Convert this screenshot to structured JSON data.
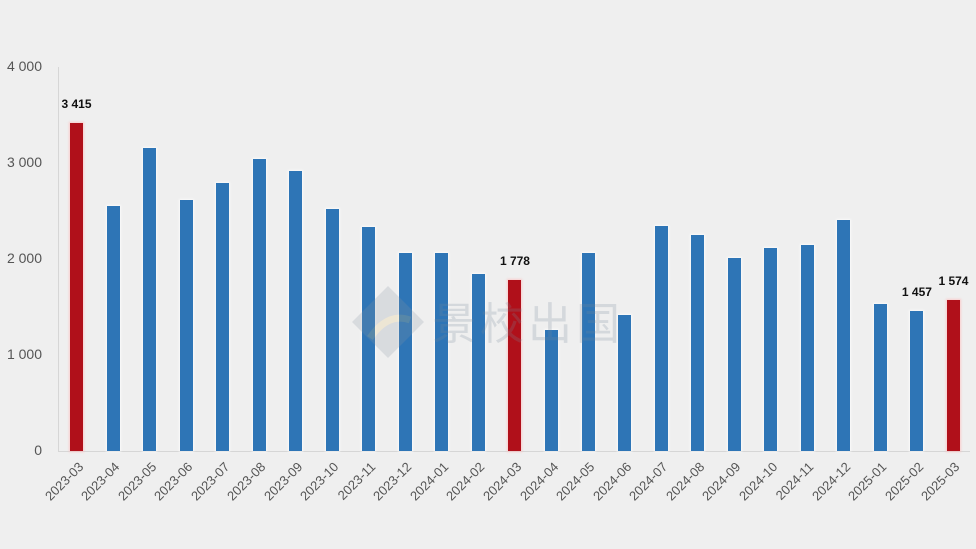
{
  "chart_data": {
    "type": "bar",
    "title": "",
    "xlabel": "",
    "ylabel": "",
    "ylim": [
      0,
      4000
    ],
    "yticks": [
      0,
      1000,
      2000,
      3000,
      4000
    ],
    "ytick_labels": [
      "0",
      "1 000",
      "2 000",
      "3 000",
      "4 000"
    ],
    "grid": false,
    "legend": null,
    "categories": [
      "2023-03",
      "2023-04",
      "2023-05",
      "2023-06",
      "2023-07",
      "2023-08",
      "2023-09",
      "2023-10",
      "2023-11",
      "2023-12",
      "2024-01",
      "2024-02",
      "2024-03",
      "2024-04",
      "2024-05",
      "2024-06",
      "2024-07",
      "2024-08",
      "2024-09",
      "2024-10",
      "2024-11",
      "2024-12",
      "2025-01",
      "2025-02",
      "2025-03"
    ],
    "values": [
      3415,
      2550,
      3155,
      2612,
      2790,
      3040,
      2915,
      2518,
      2330,
      2058,
      2058,
      1839,
      1778,
      1264,
      2058,
      1421,
      2341,
      2247,
      2006,
      2111,
      2142,
      2403,
      1536,
      1457,
      1574
    ],
    "highlighted": [
      "2023-03",
      "2024-03",
      "2025-03"
    ],
    "data_labels": [
      {
        "category": "2023-03",
        "text": "3 415"
      },
      {
        "category": "2024-03",
        "text": "1 778"
      },
      {
        "category": "2025-02",
        "text": "1 457"
      },
      {
        "category": "2025-03",
        "text": "1 574"
      }
    ],
    "colors": {
      "default": "#2e75b6",
      "highlight": "#b0101a",
      "background": "#efefef"
    }
  },
  "watermark": {
    "text": "景校出国"
  }
}
